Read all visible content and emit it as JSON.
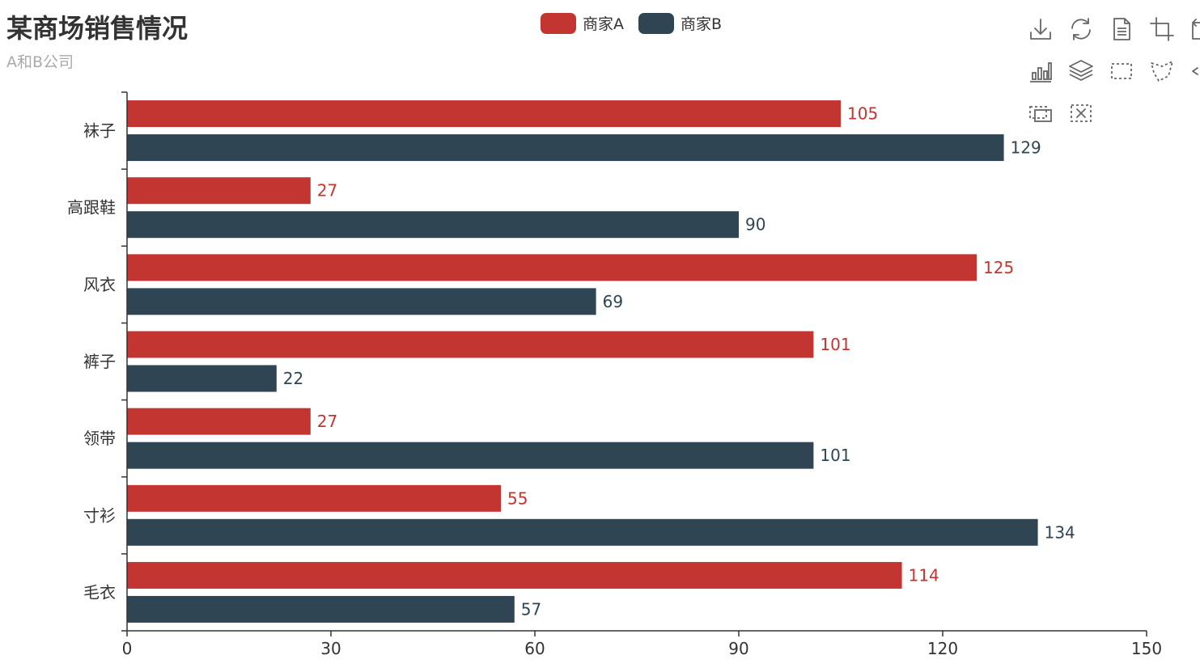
{
  "title": "某商场销售情况",
  "subtitle": "A和B公司",
  "legend": [
    {
      "name": "商家A",
      "color": "#c23531"
    },
    {
      "name": "商家B",
      "color": "#2f4554"
    }
  ],
  "toolbox": [
    {
      "name": "download-icon",
      "label": "保存为图片"
    },
    {
      "name": "refresh-icon",
      "label": "还原"
    },
    {
      "name": "document-icon",
      "label": "数据视图"
    },
    {
      "name": "crop-icon",
      "label": "区域缩放"
    },
    {
      "name": "zoom-back-icon",
      "label": "区域缩放还原"
    },
    {
      "name": "bar-chart-icon",
      "label": "切换为柱状图"
    },
    {
      "name": "stack-icon",
      "label": "切换为堆叠"
    },
    {
      "name": "rect-select-icon",
      "label": "矩形选择"
    },
    {
      "name": "polygon-select-icon",
      "label": "圈选"
    },
    {
      "name": "keep-select-icon",
      "label": "保持选择"
    },
    {
      "name": "clear-select-icon",
      "label": "清除选择"
    }
  ],
  "chart_data": {
    "type": "bar",
    "orientation": "horizontal",
    "categories": [
      "毛衣",
      "寸衫",
      "领带",
      "裤子",
      "风衣",
      "高跟鞋",
      "袜子"
    ],
    "series": [
      {
        "name": "商家A",
        "color": "#c23531",
        "values": [
          114,
          55,
          27,
          101,
          125,
          27,
          105
        ]
      },
      {
        "name": "商家B",
        "color": "#2f4554",
        "values": [
          57,
          134,
          101,
          22,
          69,
          90,
          129
        ]
      }
    ],
    "xlim": [
      0,
      150
    ],
    "xticks": [
      0,
      30,
      60,
      90,
      120,
      150
    ],
    "show_labels": true,
    "grid": false,
    "legend_position": "top-center"
  }
}
